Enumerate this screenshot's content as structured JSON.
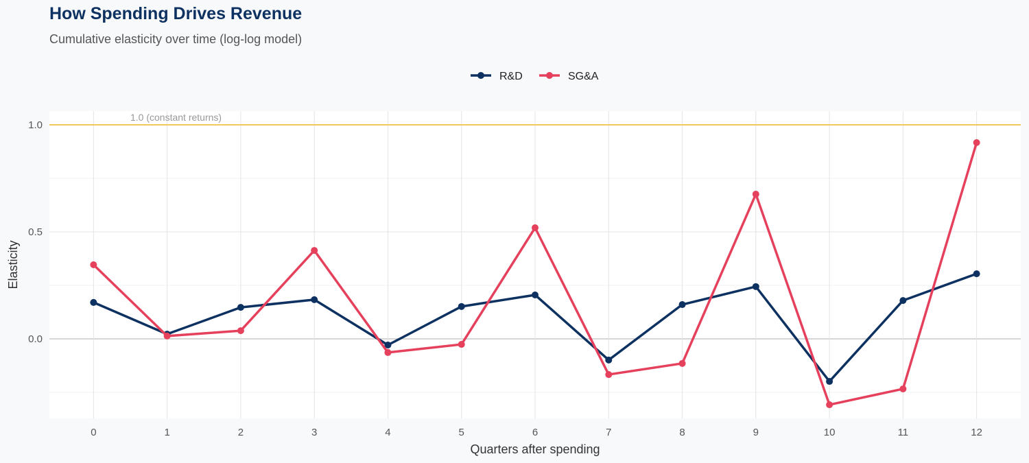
{
  "title": "How Spending Drives Revenue",
  "subtitle": "Cumulative elasticity over time (log-log model)",
  "colors": {
    "rd": "#0d3160",
    "sga": "#e5415d",
    "reference": "#f2c75c",
    "panel": "#ffffff",
    "background": "#f8f9fb"
  },
  "chart_data": {
    "type": "line",
    "title": "How Spending Drives Revenue",
    "subtitle": "Cumulative elasticity over time (log-log model)",
    "xlabel": "Quarters after spending",
    "ylabel": "Elasticity",
    "x": [
      0,
      1,
      2,
      3,
      4,
      5,
      6,
      7,
      8,
      9,
      10,
      11,
      12
    ],
    "xlim": [
      -0.6,
      12.6
    ],
    "ylim": [
      -0.372,
      1.064
    ],
    "yticks": [
      0.0,
      0.5,
      1.0
    ],
    "ytick_labels": [
      "0.0",
      "0.5",
      "1.0"
    ],
    "grid": true,
    "legend_placement": "top",
    "reference_line": {
      "y": 1.0,
      "label": "1.0 (constant returns)"
    },
    "series": [
      {
        "name": "R&D",
        "color": "#0d3160",
        "values": [
          0.17,
          0.022,
          0.147,
          0.183,
          -0.029,
          0.151,
          0.205,
          -0.099,
          0.16,
          0.244,
          -0.199,
          0.179,
          0.304
        ]
      },
      {
        "name": "SG&A",
        "color": "#e5415d",
        "values": [
          0.346,
          0.013,
          0.038,
          0.413,
          -0.064,
          -0.026,
          0.519,
          -0.167,
          -0.115,
          0.676,
          -0.308,
          -0.234,
          0.917
        ]
      }
    ]
  }
}
